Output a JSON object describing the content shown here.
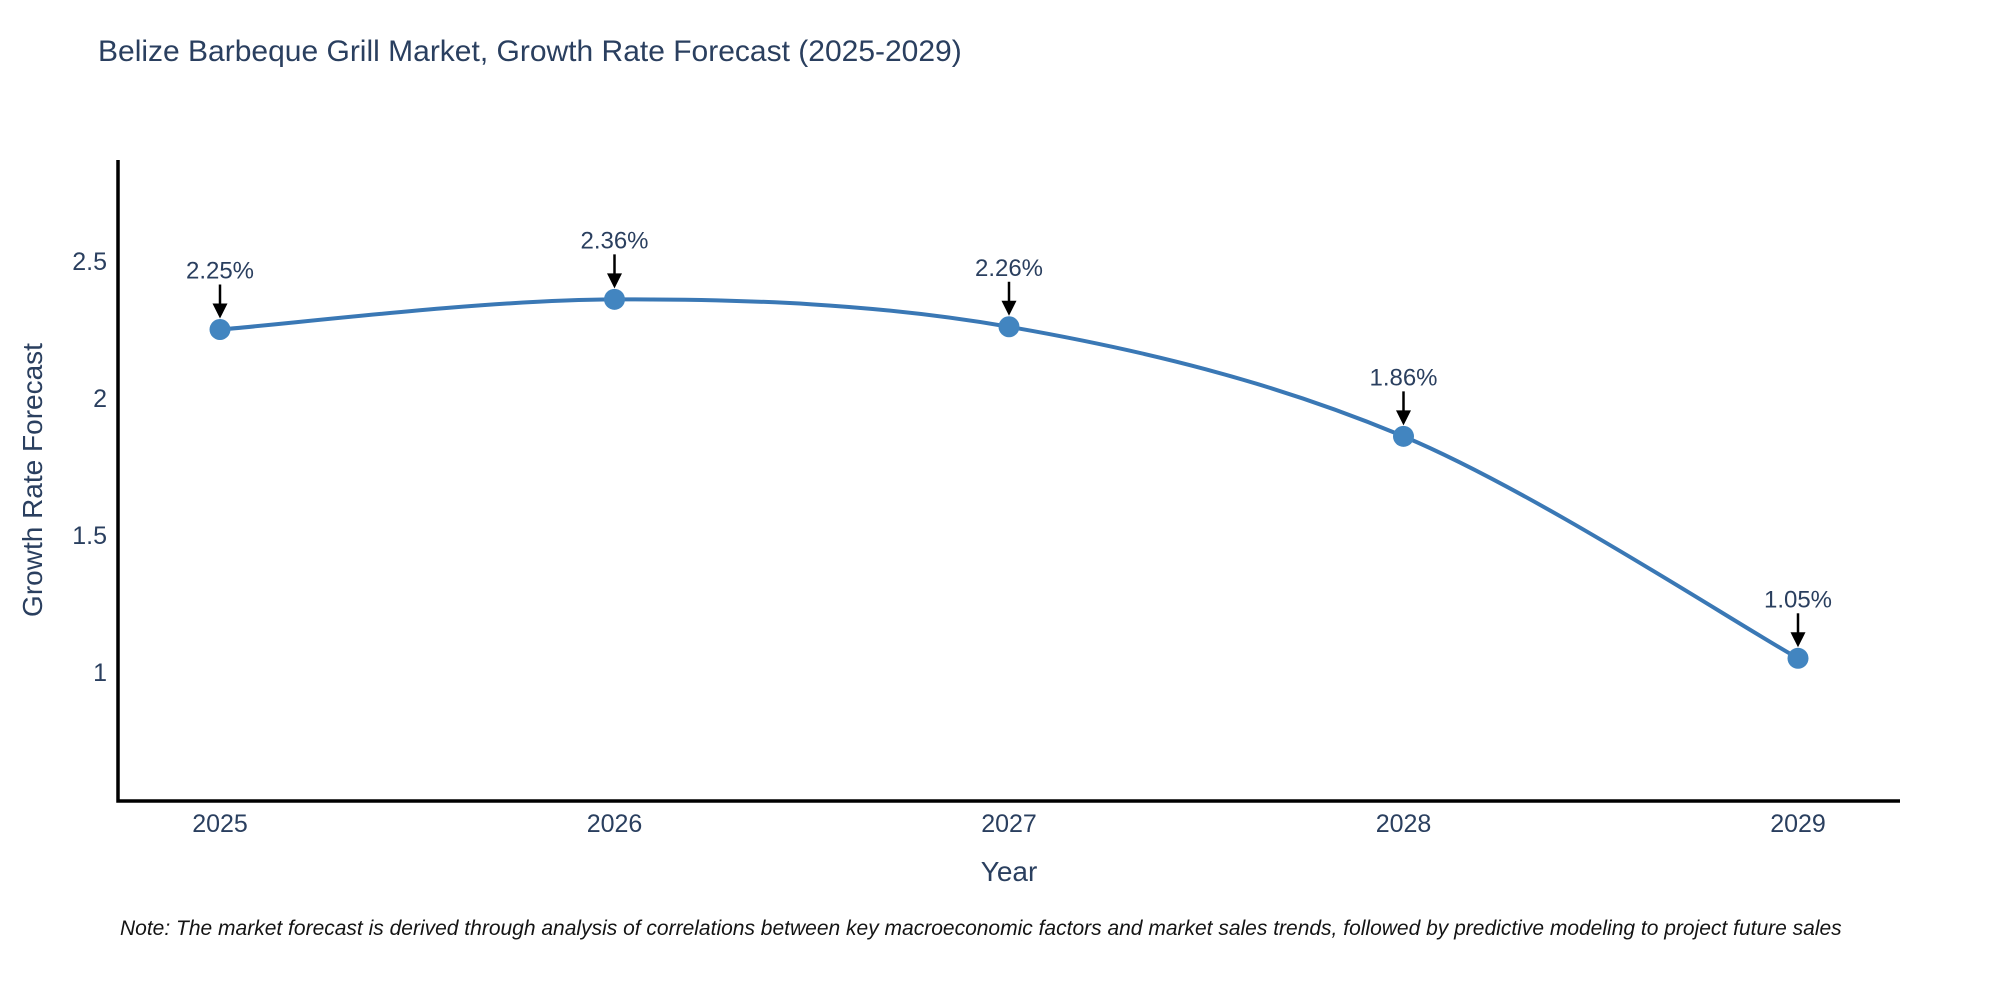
{
  "title": "Belize Barbeque Grill Market, Growth Rate Forecast (2025-2029)",
  "note": "Note: The market forecast is derived through analysis of correlations between key macroeconomic factors and market sales trends, followed by predictive modeling to project future sales",
  "chart_data": {
    "type": "line",
    "title": "Belize Barbeque Grill Market, Growth Rate Forecast (2025-2029)",
    "xlabel": "Year",
    "ylabel": "Growth Rate Forecast",
    "x": [
      2025,
      2026,
      2027,
      2028,
      2029
    ],
    "series": [
      {
        "name": "Growth Rate Forecast",
        "values": [
          2.25,
          2.36,
          2.26,
          1.86,
          1.05
        ]
      }
    ],
    "point_labels": [
      "2.25%",
      "2.36%",
      "2.26%",
      "1.86%",
      "1.05%"
    ],
    "xticks": [
      "2025",
      "2026",
      "2027",
      "2028",
      "2029"
    ],
    "yticks": [
      "1",
      "1.5",
      "2",
      "2.5"
    ],
    "ytick_values": [
      1,
      1.5,
      2,
      2.5
    ],
    "ylim": [
      0.53,
      2.87
    ],
    "line_shape": "spline",
    "grid": false,
    "legend": "none",
    "marker": "circle",
    "colors": {
      "line": "#3a78b5",
      "marker": "#4285c0",
      "axis": "#000000",
      "tick_text": "#2a3f5f",
      "title_text": "#2a3f5f",
      "annotation_text": "#2a3f5f",
      "arrow": "#000000",
      "note_text": "#141414",
      "background": "#ffffff"
    }
  }
}
